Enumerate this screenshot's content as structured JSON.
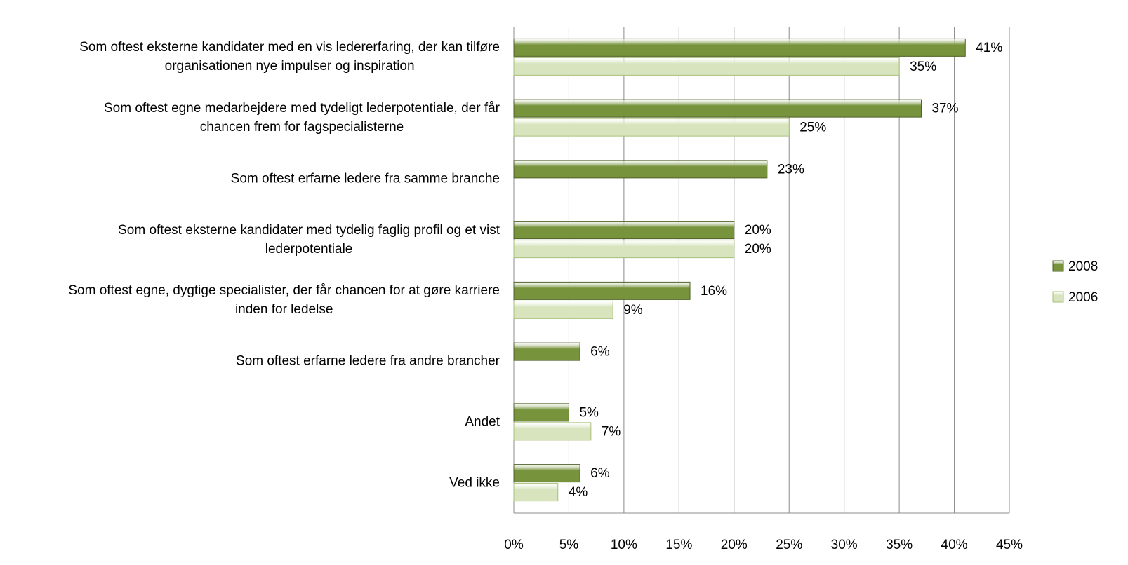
{
  "chart_data": {
    "type": "hbar",
    "categories": [
      "Som oftest eksterne kandidater med en vis ledererfaring, der kan tilføre\norganisationen nye impulser og inspiration",
      "Som oftest egne medarbejdere med tydeligt lederpotentiale, der får\nchancen frem for fagspecialisterne",
      "Som oftest erfarne ledere fra samme  branche",
      "Som oftest eksterne kandidater med tydelig faglig profil og et vist\nlederpotentiale",
      "Som oftest egne, dygtige specialister, der får chancen for at gøre karriere\ninden for ledelse",
      "Som oftest erfarne ledere fra andre brancher",
      "Andet",
      "Ved ikke"
    ],
    "series": [
      {
        "name": "2008",
        "color": "#77933c",
        "values": [
          41,
          37,
          23,
          20,
          16,
          6,
          5,
          6
        ],
        "value_labels": [
          "41%",
          "37%",
          "23%",
          "20%",
          "16%",
          "6%",
          "5%",
          "6%"
        ]
      },
      {
        "name": "2006",
        "color": "#d7e4bd",
        "values": [
          35,
          25,
          null,
          20,
          9,
          null,
          7,
          4
        ],
        "value_labels": [
          "35%",
          "25%",
          null,
          "20%",
          "9%",
          null,
          "7%",
          "4%"
        ]
      }
    ],
    "xlim": [
      0,
      45
    ],
    "xticks": [
      {
        "value": 0,
        "label": "0%"
      },
      {
        "value": 5,
        "label": "5%"
      },
      {
        "value": 10,
        "label": "10%"
      },
      {
        "value": 15,
        "label": "15%"
      },
      {
        "value": 20,
        "label": "20%"
      },
      {
        "value": 25,
        "label": "25%"
      },
      {
        "value": 30,
        "label": "30%"
      },
      {
        "value": 35,
        "label": "35%"
      },
      {
        "value": 40,
        "label": "40%"
      },
      {
        "value": 45,
        "label": "45%"
      }
    ],
    "grid": true,
    "legend": "right"
  }
}
